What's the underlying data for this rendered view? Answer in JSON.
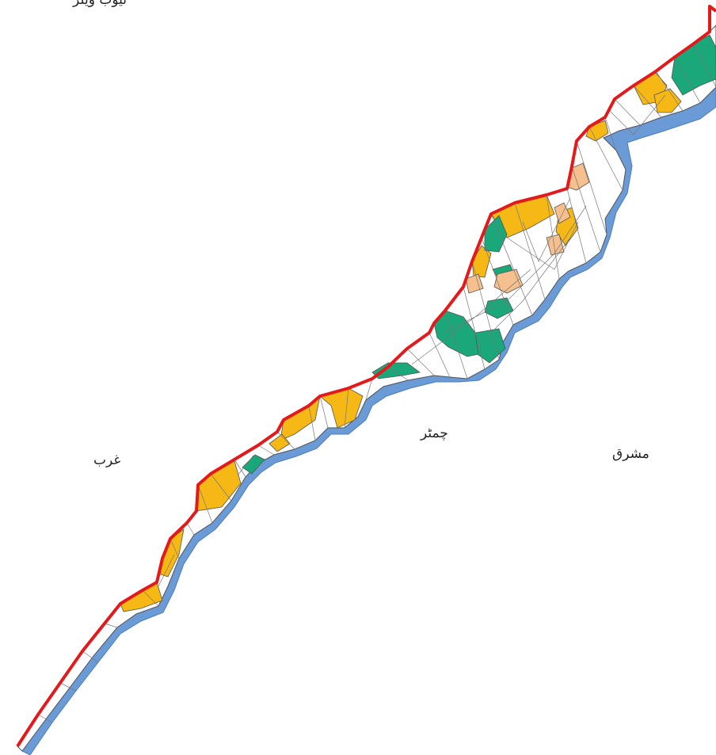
{
  "labels": {
    "top": "ٹیوب ویلز",
    "west": "غرب",
    "center": "چمٹر",
    "east": "مشرق"
  },
  "colors": {
    "north_bank": "#e31a1c",
    "south_bank": "#6b9bd6",
    "strip_fill": "#ffffff",
    "grid_lines": "#666666",
    "yellow_parcels": "#f5b814",
    "green_parcels": "#1aa77a",
    "peach_parcels": "#f6c08e"
  }
}
